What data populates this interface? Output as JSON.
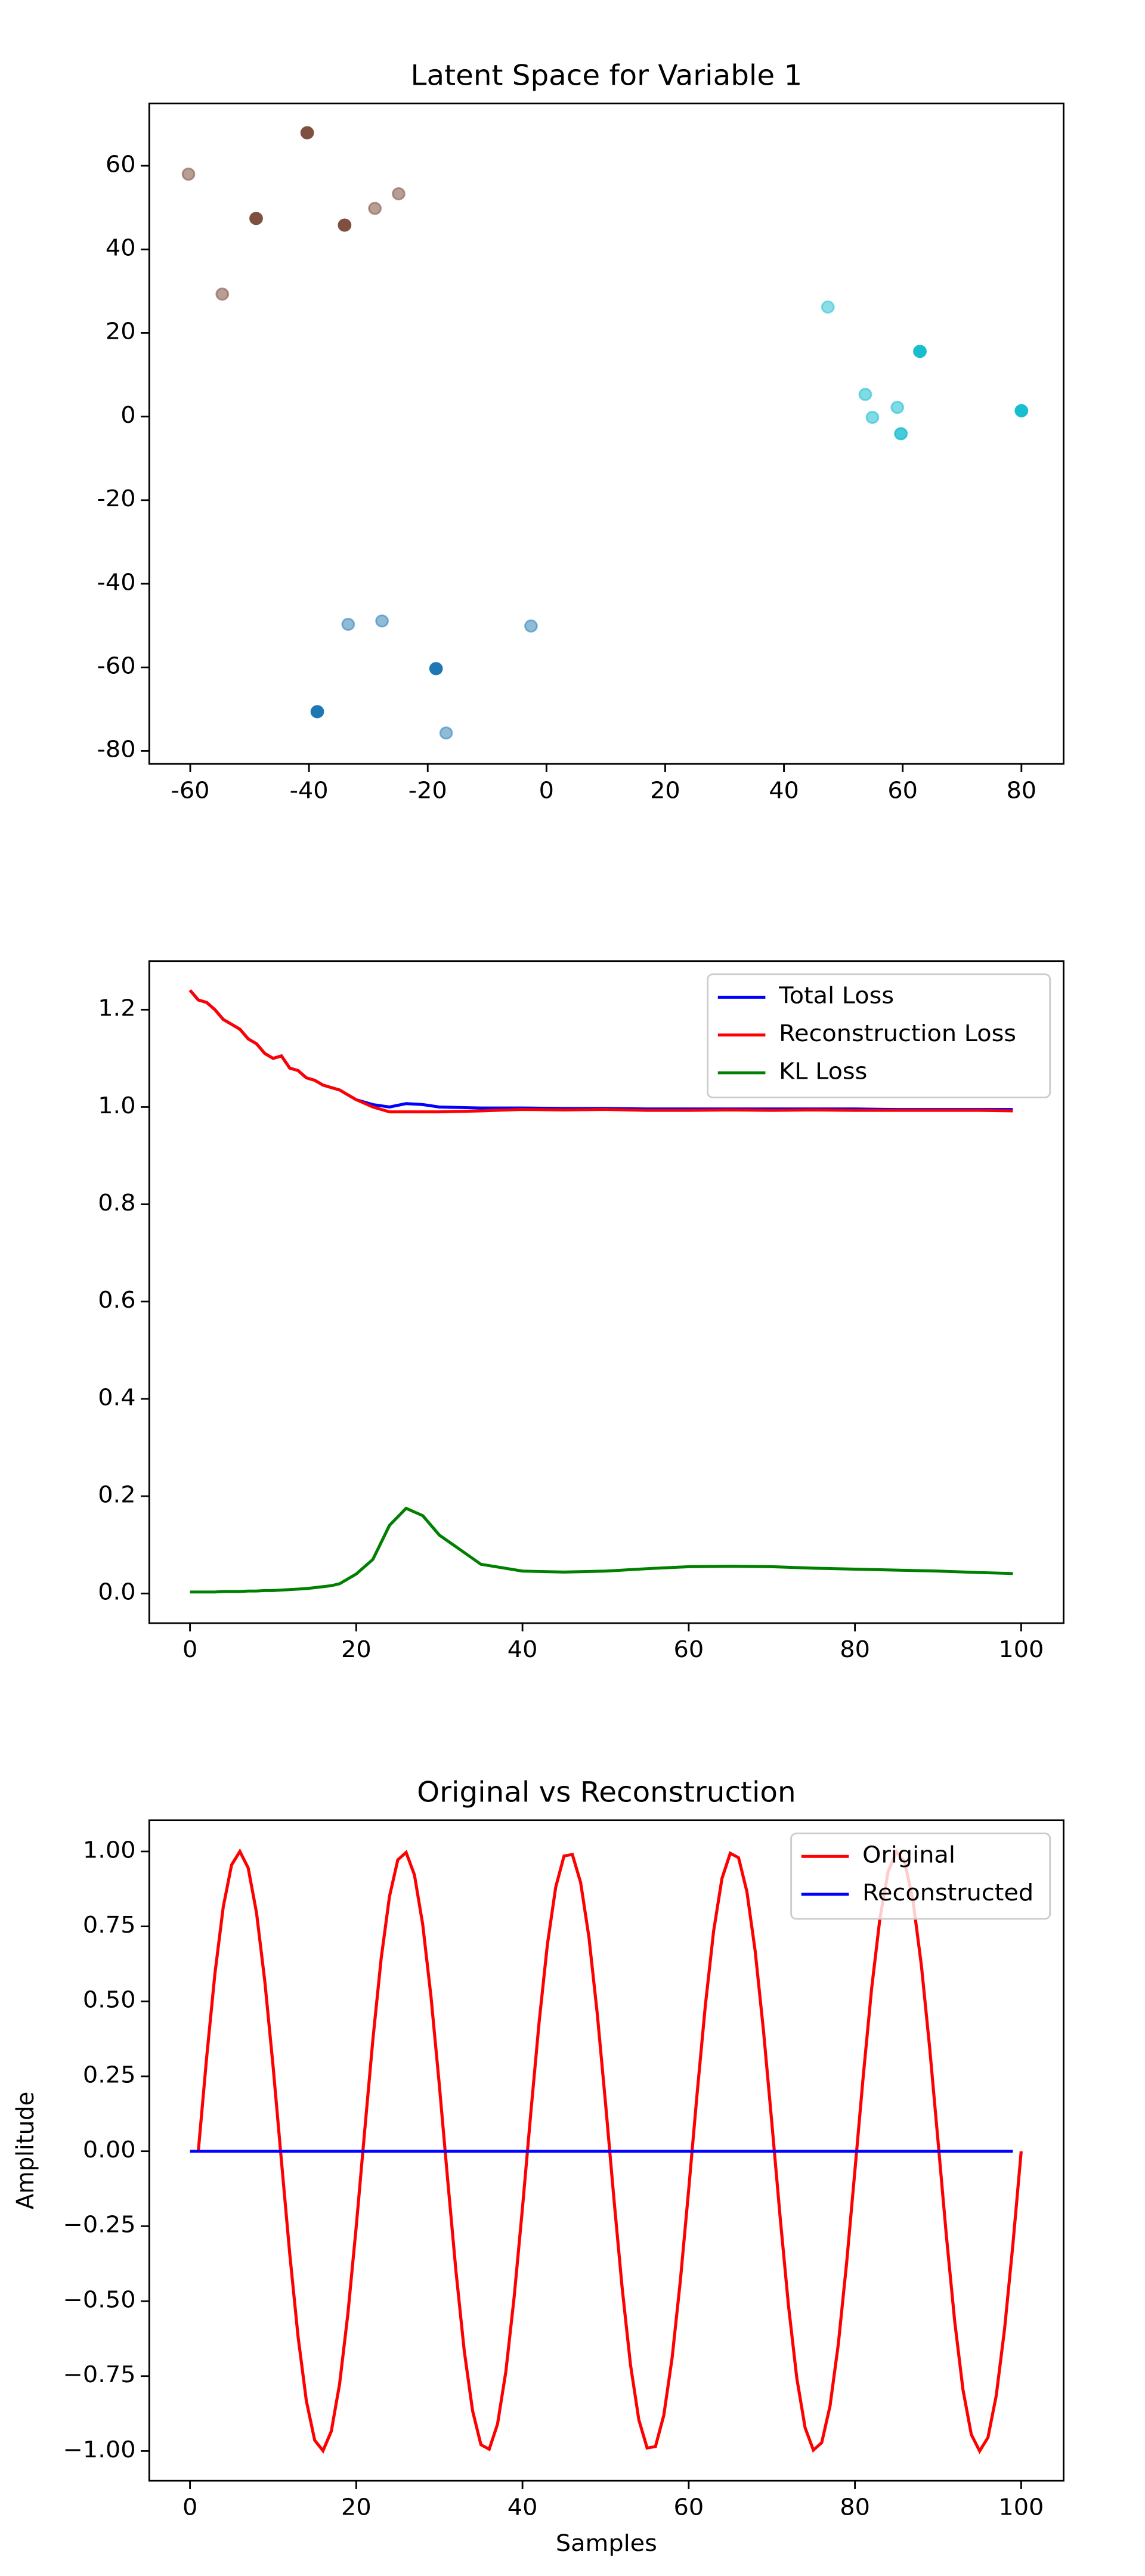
{
  "chart_data": [
    {
      "type": "scatter",
      "title": "Latent Space for Variable 1",
      "xlim": [
        -66.9,
        87.1
      ],
      "xticks": [
        -60,
        -40,
        -20,
        0,
        20,
        40,
        60,
        80
      ],
      "ylim": [
        -83.1,
        74.9
      ],
      "yticks": [
        -80,
        -60,
        -40,
        -20,
        0,
        20,
        40,
        60
      ],
      "series": [
        {
          "color": "#7f4f3f",
          "x": [
            -60.3,
            -40.3,
            -48.9,
            -54.6,
            -34.0,
            -28.9,
            -24.9
          ],
          "values": [
            58.0,
            67.9,
            47.4,
            29.3,
            45.8,
            49.8,
            53.3
          ],
          "alpha": [
            0.55,
            1,
            1,
            0.55,
            1,
            0.55,
            0.55
          ]
        },
        {
          "color": "#17becf",
          "x": [
            47.4,
            62.9,
            53.7,
            54.9,
            59.1,
            59.7,
            80.0
          ],
          "values": [
            26.2,
            15.6,
            5.3,
            -0.2,
            2.2,
            -4.1,
            1.4
          ],
          "alpha": [
            0.5,
            1,
            0.55,
            0.55,
            0.55,
            0.8,
            1
          ]
        },
        {
          "color": "#1f77b4",
          "x": [
            -33.4,
            -27.7,
            -2.6,
            -18.6,
            -38.6,
            -16.9
          ],
          "values": [
            -49.7,
            -48.9,
            -50.1,
            -60.3,
            -70.6,
            -75.7
          ],
          "alpha": [
            0.5,
            0.5,
            0.5,
            1,
            1,
            0.5
          ]
        }
      ]
    },
    {
      "type": "line",
      "legend": "upper right",
      "xlim": [
        -4.9,
        105.1
      ],
      "xticks": [
        0,
        20,
        40,
        60,
        80,
        100
      ],
      "ylim": [
        -0.061,
        1.3
      ],
      "yticks": [
        {
          "value": 0,
          "label": "0.0"
        },
        {
          "value": 0.2,
          "label": "0.2"
        },
        {
          "value": 0.4,
          "label": "0.4"
        },
        {
          "value": 0.6,
          "label": "0.6"
        },
        {
          "value": 0.8,
          "label": "0.8"
        },
        {
          "value": 1,
          "label": "1.0"
        },
        {
          "value": 1.2,
          "label": "1.2"
        }
      ],
      "x": [
        0,
        1,
        2,
        3,
        4,
        5,
        6,
        7,
        8,
        9,
        10,
        11,
        12,
        13,
        14,
        15,
        16,
        17,
        18,
        19,
        20,
        22,
        24,
        26,
        28,
        30,
        35,
        40,
        45,
        50,
        55,
        60,
        65,
        70,
        75,
        80,
        85,
        90,
        95,
        99
      ],
      "series": [
        {
          "name": "Total Loss",
          "color": "#0000ff",
          "values": [
            1.24,
            1.22,
            1.215,
            1.2,
            1.18,
            1.17,
            1.16,
            1.14,
            1.13,
            1.11,
            1.1,
            1.105,
            1.08,
            1.075,
            1.06,
            1.055,
            1.045,
            1.04,
            1.035,
            1.025,
            1.015,
            1.005,
            1.0,
            1.007,
            1.005,
            1.0,
            0.998,
            0.998,
            0.997,
            0.997,
            0.996,
            0.996,
            0.996,
            0.996,
            0.996,
            0.996,
            0.995,
            0.995,
            0.995,
            0.995
          ]
        },
        {
          "name": "Reconstruction Loss",
          "color": "#ff0000",
          "values": [
            1.24,
            1.22,
            1.215,
            1.2,
            1.18,
            1.17,
            1.16,
            1.14,
            1.13,
            1.11,
            1.1,
            1.105,
            1.08,
            1.075,
            1.06,
            1.055,
            1.045,
            1.04,
            1.035,
            1.025,
            1.015,
            1.0,
            0.99,
            0.99,
            0.99,
            0.99,
            0.992,
            0.995,
            0.994,
            0.995,
            0.993,
            0.993,
            0.994,
            0.993,
            0.994,
            0.993,
            0.993,
            0.993,
            0.993,
            0.992
          ]
        },
        {
          "name": "KL Loss",
          "color": "#008000",
          "values": [
            0.003,
            0.003,
            0.003,
            0.003,
            0.004,
            0.004,
            0.004,
            0.005,
            0.005,
            0.006,
            0.006,
            0.007,
            0.008,
            0.009,
            0.01,
            0.012,
            0.014,
            0.016,
            0.02,
            0.03,
            0.04,
            0.07,
            0.14,
            0.175,
            0.16,
            0.12,
            0.06,
            0.046,
            0.044,
            0.046,
            0.051,
            0.055,
            0.056,
            0.055,
            0.052,
            0.05,
            0.048,
            0.046,
            0.043,
            0.041
          ]
        }
      ]
    },
    {
      "type": "line",
      "title": "Original vs Reconstruction",
      "xlabel": "Samples",
      "ylabel": "Amplitude",
      "legend": "upper right",
      "xlim": [
        -4.9,
        105.1
      ],
      "xticks": [
        0,
        20,
        40,
        60,
        80,
        100
      ],
      "ylim": [
        -1.099,
        1.104
      ],
      "yticks": [
        {
          "value": -1,
          "label": "−1.00"
        },
        {
          "value": -0.75,
          "label": "−0.75"
        },
        {
          "value": -0.5,
          "label": "−0.50"
        },
        {
          "value": -0.25,
          "label": "−0.25"
        },
        {
          "value": 0,
          "label": "0.00"
        },
        {
          "value": 0.25,
          "label": "0.25"
        },
        {
          "value": 0.5,
          "label": "0.50"
        },
        {
          "value": 0.75,
          "label": "0.75"
        },
        {
          "value": 1,
          "label": "1.00"
        }
      ],
      "series": [
        {
          "name": "Original",
          "color": "#ff0000",
          "x": [
            1,
            2,
            3,
            4,
            5,
            6,
            7,
            8,
            9,
            10,
            11,
            12,
            13,
            14,
            15,
            16,
            17,
            18,
            19,
            20,
            21,
            22,
            23,
            24,
            25,
            26,
            27,
            28,
            29,
            30,
            31,
            32,
            33,
            34,
            35,
            36,
            37,
            38,
            39,
            40,
            41,
            42,
            43,
            44,
            45,
            46,
            47,
            48,
            49,
            50,
            51,
            52,
            53,
            54,
            55,
            56,
            57,
            58,
            59,
            60,
            61,
            62,
            63,
            64,
            65,
            66,
            67,
            68,
            69,
            70,
            71,
            72,
            73,
            74,
            75,
            76,
            77,
            78,
            79,
            80,
            81,
            82,
            83,
            84,
            85,
            86,
            87,
            88,
            89,
            90,
            91,
            92,
            93,
            94,
            95,
            96,
            97,
            98,
            99,
            100
          ],
          "values": [
            0,
            0.312,
            0.593,
            0.815,
            0.955,
            1.0,
            0.945,
            0.796,
            0.567,
            0.282,
            -0.032,
            -0.342,
            -0.618,
            -0.833,
            -0.964,
            -0.999,
            -0.934,
            -0.776,
            -0.541,
            -0.251,
            0.063,
            0.372,
            0.643,
            0.85,
            0.972,
            0.997,
            0.922,
            0.756,
            0.514,
            0.22,
            -0.095,
            -0.401,
            -0.667,
            -0.866,
            -0.979,
            -0.994,
            -0.91,
            -0.735,
            -0.486,
            -0.189,
            0.127,
            0.43,
            0.69,
            0.881,
            0.985,
            0.99,
            0.896,
            0.713,
            0.458,
            0.158,
            -0.158,
            -0.458,
            -0.713,
            -0.896,
            -0.99,
            -0.985,
            -0.881,
            -0.69,
            -0.43,
            -0.127,
            0.189,
            0.486,
            0.735,
            0.91,
            0.994,
            0.979,
            0.866,
            0.667,
            0.401,
            0.095,
            -0.22,
            -0.514,
            -0.756,
            -0.922,
            -0.997,
            -0.972,
            -0.85,
            -0.643,
            -0.372,
            -0.063,
            0.251,
            0.541,
            0.776,
            0.934,
            0.999,
            0.964,
            0.833,
            0.618,
            0.342,
            0.032,
            -0.282,
            -0.567,
            -0.796,
            -0.945,
            -1.0,
            -0.955,
            -0.815,
            -0.593,
            -0.312,
            0
          ]
        },
        {
          "name": "Reconstructed",
          "color": "#0000ff",
          "x": [
            0,
            1,
            2,
            3,
            4,
            5,
            6,
            7,
            8,
            9,
            10,
            11,
            12,
            13,
            14,
            15,
            16,
            17,
            18,
            19,
            20,
            21,
            22,
            23,
            24,
            25,
            26,
            27,
            28,
            29,
            30,
            31,
            32,
            33,
            34,
            35,
            36,
            37,
            38,
            39,
            40,
            41,
            42,
            43,
            44,
            45,
            46,
            47,
            48,
            49,
            50,
            51,
            52,
            53,
            54,
            55,
            56,
            57,
            58,
            59,
            60,
            61,
            62,
            63,
            64,
            65,
            66,
            67,
            68,
            69,
            70,
            71,
            72,
            73,
            74,
            75,
            76,
            77,
            78,
            79,
            80,
            81,
            82,
            83,
            84,
            85,
            86,
            87,
            88,
            89,
            90,
            91,
            92,
            93,
            94,
            95,
            96,
            97,
            98,
            99
          ],
          "values": [
            0,
            0,
            0,
            0,
            0,
            0,
            0,
            0,
            0,
            0,
            0,
            0,
            0,
            0,
            0,
            0,
            0,
            0,
            0,
            0,
            0,
            0,
            0,
            0,
            0,
            0,
            0,
            0,
            0,
            0,
            0,
            0,
            0,
            0,
            0,
            0,
            0,
            0,
            0,
            0,
            0,
            0,
            0,
            0,
            0,
            0,
            0,
            0,
            0,
            0,
            0,
            0,
            0,
            0,
            0,
            0,
            0,
            0,
            0,
            0,
            0,
            0,
            0,
            0,
            0,
            0,
            0,
            0,
            0,
            0,
            0,
            0,
            0,
            0,
            0,
            0,
            0,
            0,
            0,
            0,
            0,
            0,
            0,
            0,
            0,
            0,
            0,
            0,
            0,
            0,
            0,
            0,
            0,
            0,
            0,
            0,
            0,
            0,
            0,
            0
          ]
        }
      ]
    }
  ]
}
